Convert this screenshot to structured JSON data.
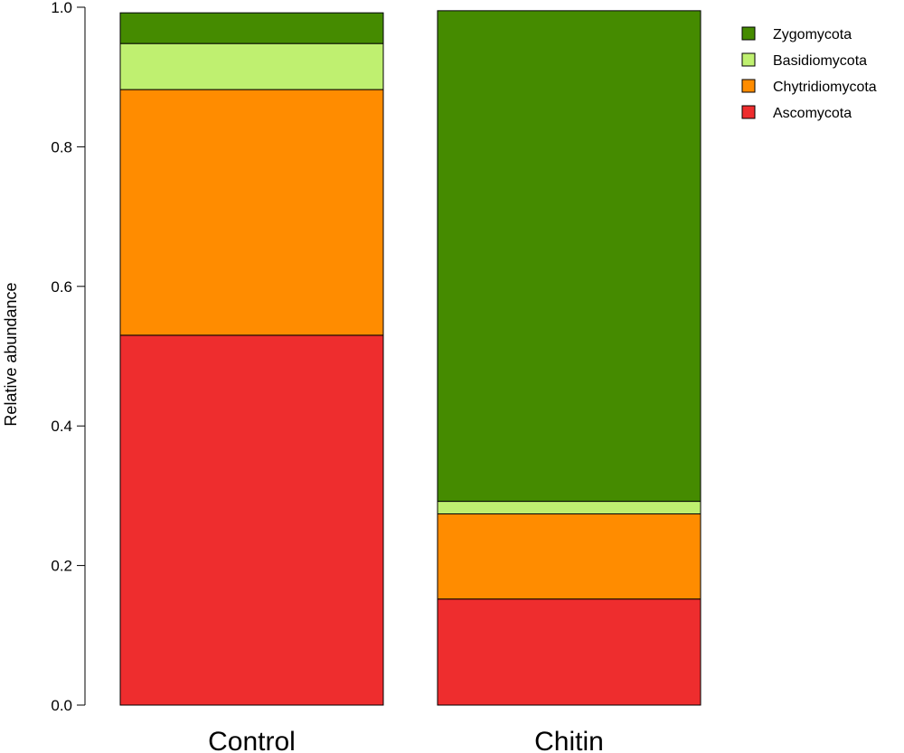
{
  "chart_data": {
    "type": "bar",
    "stacked": true,
    "categories": [
      "Control",
      "Chitin"
    ],
    "ylabel": "Relative abundance",
    "xlabel": "",
    "ylim": [
      0,
      1.0
    ],
    "yticks": [
      "0.0",
      "0.2",
      "0.4",
      "0.6",
      "0.8",
      "1.0"
    ],
    "series": [
      {
        "name": "Ascomycota",
        "color": "#ee2d2e",
        "values": [
          0.53,
          0.152
        ]
      },
      {
        "name": "Chytridiomycota",
        "color": "#ff8c00",
        "values": [
          0.352,
          0.122
        ]
      },
      {
        "name": "Basidiomycota",
        "color": "#bff070",
        "values": [
          0.066,
          0.018
        ]
      },
      {
        "name": "Zygomycota",
        "color": "#458b00",
        "values": [
          0.044,
          0.703
        ]
      }
    ],
    "legend": {
      "position": "top-right",
      "order": [
        "Zygomycota",
        "Basidiomycota",
        "Chytridiomycota",
        "Ascomycota"
      ]
    }
  }
}
